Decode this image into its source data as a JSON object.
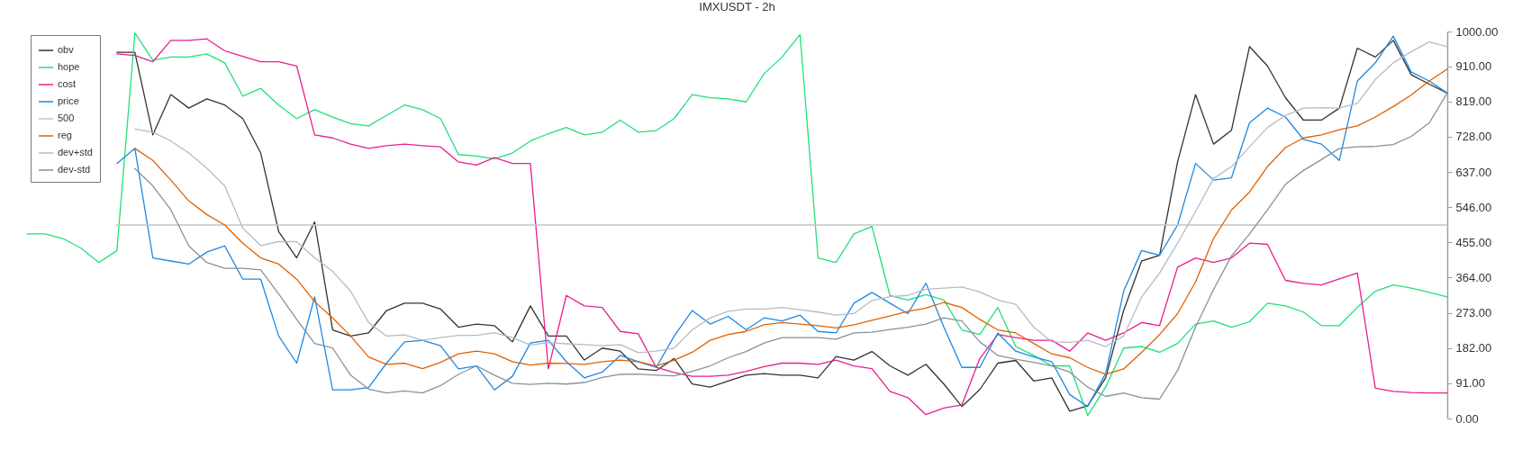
{
  "chart_data": {
    "type": "line",
    "title": "IMXUSDT - 2h",
    "categories": [
      null,
      null,
      null,
      null,
      null,
      null,
      null,
      null,
      null,
      null,
      null,
      null,
      null,
      null,
      null,
      null,
      null,
      null,
      null,
      null,
      null,
      null,
      null,
      null,
      null,
      null,
      null,
      null,
      null,
      null,
      null,
      null,
      null,
      null,
      null,
      null,
      null,
      null,
      null,
      null,
      null,
      null,
      null,
      null,
      null,
      null,
      null,
      null,
      null,
      null,
      null,
      null,
      null,
      null,
      null,
      null,
      null,
      null,
      null,
      null,
      null,
      null,
      null,
      null,
      null,
      null,
      null,
      null,
      null,
      null,
      null,
      null,
      null,
      null,
      null,
      null,
      null,
      null,
      null,
      null
    ],
    "ylim": [
      0,
      1000
    ],
    "yticks": [
      {
        "value": 0,
        "label": "0.00"
      },
      {
        "value": 91,
        "label": "91.00"
      },
      {
        "value": 182,
        "label": "182.00"
      },
      {
        "value": 273,
        "label": "273.00"
      },
      {
        "value": 364,
        "label": "364.00"
      },
      {
        "value": 455,
        "label": "455.00"
      },
      {
        "value": 546,
        "label": "546.00"
      },
      {
        "value": 637,
        "label": "637.00"
      },
      {
        "value": 728,
        "label": "728.00"
      },
      {
        "value": 819,
        "label": "819.00"
      },
      {
        "value": 910,
        "label": "910.00"
      },
      {
        "value": 1000,
        "label": "1000.00"
      }
    ],
    "tick_labels": "y",
    "legend": "top left",
    "grid": false,
    "series": [
      {
        "name": "obv",
        "color": "#333333",
        "values": [
          null,
          null,
          null,
          null,
          null,
          946,
          946,
          733,
          837,
          802,
          826,
          810,
          775,
          686,
          483,
          415,
          508,
          229,
          213,
          221,
          279,
          298,
          298,
          283,
          236,
          244,
          240,
          198,
          291,
          213,
          213,
          151,
          182,
          174,
          128,
          124,
          155,
          89,
          81,
          97,
          112,
          116,
          112,
          112,
          105,
          160,
          151,
          173,
          136,
          112,
          140,
          89,
          31,
          75,
          143,
          150,
          97,
          105,
          19,
          33,
          105,
          279,
          407,
          422,
          663,
          837,
          709,
          745,
          961,
          911,
          829,
          771,
          771,
          802,
          957,
          934,
          977,
          888,
          864,
          841
        ]
      },
      {
        "name": "hope",
        "color": "#1ee07a",
        "values": [
          477,
          477,
          465,
          440,
          403,
          434,
          996,
          926,
          934,
          934,
          942,
          919,
          833,
          853,
          810,
          775,
          798,
          779,
          762,
          756,
          783,
          810,
          798,
          775,
          682,
          678,
          671,
          686,
          717,
          736,
          752,
          733,
          740,
          771,
          740,
          744,
          775,
          837,
          829,
          826,
          818,
          891,
          934,
          992,
          415,
          403,
          477,
          496,
          318,
          306,
          320,
          306,
          229,
          217,
          287,
          186,
          163,
          136,
          136,
          8,
          81,
          182,
          186,
          171,
          194,
          244,
          252,
          236,
          250,
          298,
          291,
          275,
          240,
          240,
          287,
          329,
          345,
          337,
          326,
          314
        ]
      },
      {
        "name": "cost",
        "color": "#e91e8c",
        "values": [
          null,
          null,
          null,
          null,
          null,
          942,
          938,
          922,
          977,
          977,
          981,
          950,
          936,
          922,
          922,
          911,
          733,
          725,
          709,
          698,
          705,
          709,
          705,
          702,
          663,
          655,
          674,
          659,
          659,
          128,
          318,
          291,
          287,
          225,
          219,
          132,
          119,
          109,
          109,
          112,
          122,
          134,
          143,
          143,
          140,
          151,
          136,
          129,
          70,
          54,
          10,
          27,
          35,
          155,
          217,
          209,
          202,
          202,
          174,
          221,
          202,
          221,
          248,
          240,
          391,
          415,
          403,
          415,
          453,
          450,
          357,
          349,
          345,
          361,
          376,
          78,
          70,
          67,
          66,
          66
        ]
      },
      {
        "name": "price",
        "color": "#1e88e5",
        "values": [
          null,
          null,
          null,
          null,
          null,
          659,
          698,
          415,
          407,
          399,
          430,
          446,
          360,
          360,
          213,
          143,
          314,
          74,
          74,
          80,
          143,
          198,
          202,
          188,
          128,
          136,
          74,
          109,
          195,
          202,
          147,
          105,
          120,
          163,
          147,
          132,
          213,
          279,
          244,
          264,
          229,
          260,
          252,
          267,
          225,
          221,
          298,
          326,
          298,
          271,
          350,
          236,
          132,
          132,
          221,
          174,
          159,
          147,
          62,
          31,
          116,
          329,
          434,
          422,
          500,
          659,
          616,
          622,
          764,
          802,
          779,
          721,
          709,
          667,
          872,
          919,
          988,
          895,
          872,
          841
        ]
      },
      {
        "name": "500",
        "color": "#c4c4c4",
        "values": [
          null,
          null,
          null,
          null,
          null,
          500,
          500,
          500,
          500,
          500,
          500,
          500,
          500,
          500,
          500,
          500,
          500,
          500,
          500,
          500,
          500,
          500,
          500,
          500,
          500,
          500,
          500,
          500,
          500,
          500,
          500,
          500,
          500,
          500,
          500,
          500,
          500,
          500,
          500,
          500,
          500,
          500,
          500,
          500,
          500,
          500,
          500,
          500,
          500,
          500,
          500,
          500,
          500,
          500,
          500,
          500,
          500,
          500,
          500,
          500,
          500,
          500,
          500,
          500,
          500,
          500,
          500,
          500,
          500,
          500,
          500,
          500,
          500,
          500,
          500,
          500,
          500,
          500,
          500,
          500
        ]
      },
      {
        "name": "reg",
        "color": "#e06000",
        "values": [
          null,
          null,
          null,
          null,
          null,
          null,
          698,
          667,
          616,
          562,
          527,
          500,
          453,
          415,
          399,
          360,
          302,
          260,
          213,
          159,
          140,
          143,
          129,
          145,
          167,
          174,
          167,
          147,
          138,
          143,
          142,
          140,
          147,
          151,
          147,
          136,
          151,
          171,
          202,
          217,
          225,
          242,
          248,
          244,
          240,
          234,
          242,
          254,
          265,
          277,
          285,
          300,
          287,
          256,
          229,
          221,
          194,
          167,
          157,
          132,
          114,
          128,
          171,
          217,
          271,
          353,
          465,
          539,
          585,
          651,
          700,
          725,
          733,
          746,
          756,
          779,
          806,
          836,
          872,
          903
        ]
      },
      {
        "name": "dev+std",
        "color": "#b4bcc4",
        "values": [
          null,
          null,
          null,
          null,
          null,
          null,
          748,
          740,
          717,
          686,
          647,
          601,
          492,
          447,
          457,
          457,
          415,
          380,
          329,
          248,
          213,
          216,
          202,
          209,
          215,
          215,
          222,
          209,
          190,
          196,
          193,
          191,
          188,
          191,
          170,
          174,
          182,
          229,
          260,
          277,
          283,
          283,
          287,
          281,
          275,
          267,
          271,
          305,
          315,
          318,
          334,
          337,
          340,
          327,
          306,
          295,
          236,
          198,
          197,
          202,
          186,
          213,
          314,
          376,
          453,
          535,
          620,
          651,
          702,
          752,
          783,
          802,
          803,
          802,
          814,
          876,
          919,
          948,
          973,
          961
        ]
      },
      {
        "name": "dev-std",
        "color": "#87929b",
        "values": [
          null,
          null,
          null,
          null,
          null,
          null,
          646,
          601,
          539,
          446,
          403,
          388,
          388,
          384,
          322,
          256,
          194,
          182,
          112,
          76,
          66,
          71,
          66,
          85,
          114,
          136,
          112,
          91,
          88,
          91,
          89,
          93,
          106,
          114,
          115,
          112,
          110,
          122,
          136,
          157,
          173,
          195,
          209,
          209,
          209,
          205,
          221,
          223,
          230,
          236,
          244,
          260,
          252,
          198,
          163,
          153,
          145,
          136,
          120,
          81,
          57,
          66,
          54,
          50,
          124,
          236,
          333,
          420,
          477,
          539,
          605,
          641,
          669,
          698,
          702,
          703,
          708,
          729,
          764,
          841
        ]
      }
    ]
  }
}
